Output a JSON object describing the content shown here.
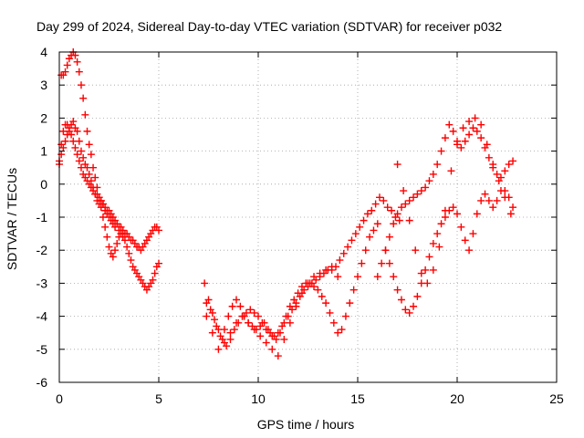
{
  "chart_data": {
    "type": "scatter",
    "title": "Day 299 of 2024, Sidereal Day-to-day VTEC variation (SDTVAR) for receiver p032",
    "xlabel": "GPS time / hours",
    "ylabel": "SDTVAR / TECUs",
    "xlim": [
      0,
      25
    ],
    "ylim": [
      -6,
      4
    ],
    "xticks": [
      0,
      5,
      10,
      15,
      20,
      25
    ],
    "yticks": [
      -6,
      -5,
      -4,
      -3,
      -2,
      -1,
      0,
      1,
      2,
      3,
      4
    ],
    "grid": true,
    "marker": "+",
    "series": [
      {
        "name": "p032",
        "color": "#ff0000",
        "x": [
          0.0,
          0.1,
          0.2,
          0.3,
          0.4,
          0.5,
          0.6,
          0.7,
          0.8,
          0.9,
          1.0,
          1.1,
          1.2,
          1.3,
          1.4,
          1.5,
          1.6,
          1.7,
          1.8,
          1.9,
          2.0,
          2.1,
          2.2,
          2.3,
          2.4,
          2.5,
          2.6,
          2.7,
          2.8,
          2.9,
          3.0,
          3.1,
          3.2,
          3.3,
          3.4,
          3.5,
          3.6,
          3.7,
          3.8,
          3.9,
          4.0,
          4.1,
          4.2,
          4.3,
          4.4,
          4.5,
          4.6,
          4.7,
          4.8,
          4.9,
          5.0,
          0.0,
          0.1,
          0.2,
          0.3,
          0.4,
          0.5,
          0.6,
          0.7,
          0.8,
          0.9,
          1.0,
          1.1,
          1.2,
          1.3,
          1.4,
          1.5,
          1.6,
          1.7,
          1.8,
          1.9,
          2.0,
          2.1,
          2.2,
          2.3,
          2.4,
          2.5,
          2.6,
          2.7,
          2.8,
          2.9,
          3.0,
          3.1,
          3.2,
          3.3,
          3.4,
          3.5,
          3.6,
          3.7,
          3.8,
          3.9,
          4.0,
          4.1,
          4.2,
          4.3,
          4.4,
          4.5,
          4.6,
          4.7,
          4.8,
          4.9,
          5.0,
          0.1,
          0.2,
          0.3,
          0.4,
          0.5,
          0.6,
          0.7,
          0.8,
          0.9,
          1.0,
          1.1,
          1.2,
          1.3,
          1.4,
          1.5,
          1.6,
          1.7,
          1.8,
          1.9,
          2.0,
          2.1,
          2.2,
          2.3,
          2.4,
          2.5,
          2.6,
          2.7,
          2.8,
          2.9,
          3.0,
          3.1,
          7.3,
          7.5,
          7.7,
          7.9,
          8.1,
          8.3,
          8.5,
          8.7,
          8.9,
          9.1,
          9.3,
          9.5,
          9.7,
          9.9,
          10.1,
          10.3,
          10.5,
          10.7,
          10.9,
          11.1,
          11.3,
          11.5,
          11.7,
          11.9,
          12.1,
          12.3,
          12.5,
          12.7,
          12.9,
          13.1,
          13.3,
          13.5,
          13.7,
          13.9,
          14.1,
          14.3,
          14.5,
          14.7,
          14.9,
          15.1,
          15.3,
          15.5,
          15.7,
          15.9,
          16.1,
          16.3,
          16.5,
          16.7,
          16.9,
          17.1,
          7.4,
          7.6,
          7.8,
          8.0,
          8.2,
          8.4,
          8.6,
          8.8,
          9.0,
          9.2,
          9.4,
          9.6,
          9.8,
          10.0,
          10.2,
          10.4,
          10.6,
          10.8,
          11.0,
          11.2,
          11.4,
          11.6,
          11.8,
          12.0,
          12.2,
          12.4,
          12.6,
          12.8,
          13.0,
          13.2,
          13.4,
          13.6,
          13.8,
          14.0,
          14.2,
          14.4,
          14.6,
          14.8,
          15.0,
          15.2,
          15.4,
          15.6,
          15.8,
          16.0,
          7.4,
          7.7,
          8.0,
          8.3,
          8.6,
          8.9,
          9.2,
          9.5,
          9.8,
          10.1,
          10.4,
          10.7,
          11.0,
          11.3,
          11.6,
          11.9,
          12.2,
          12.5,
          12.8,
          13.1,
          13.4,
          13.7,
          14.0,
          16.0,
          16.2,
          16.4,
          16.6,
          16.8,
          17.0,
          17.2,
          17.4,
          17.6,
          17.8,
          18.0,
          18.2,
          18.4,
          18.6,
          18.8,
          19.0,
          19.2,
          19.4,
          19.6,
          19.8,
          20.0,
          20.2,
          20.4,
          20.6,
          20.8,
          21.0,
          21.2,
          21.4,
          21.6,
          21.8,
          22.0,
          22.2,
          22.4,
          22.6,
          22.8,
          16.4,
          16.6,
          16.8,
          17.0,
          17.2,
          17.4,
          17.6,
          17.8,
          18.0,
          18.2,
          18.4,
          18.6,
          18.8,
          19.0,
          19.2,
          19.4,
          19.6,
          19.8,
          20.0,
          20.2,
          20.4,
          20.6,
          20.8,
          21.0,
          21.2,
          21.4,
          21.6,
          21.8,
          22.0,
          22.2,
          22.4,
          22.6,
          22.8,
          17.0,
          17.3,
          17.6,
          17.9,
          18.2,
          18.5,
          18.8,
          19.1,
          19.4,
          19.7,
          20.0,
          20.3,
          20.6,
          20.9,
          21.2,
          21.5,
          21.8,
          22.1,
          22.4,
          22.7
        ],
        "y": [
          0.6,
          1.2,
          1.6,
          1.8,
          1.8,
          1.7,
          1.8,
          1.9,
          1.7,
          1.6,
          1.3,
          1.0,
          0.8,
          0.6,
          0.5,
          0.3,
          0.1,
          -0.1,
          -0.3,
          -0.5,
          -0.6,
          -0.5,
          -0.6,
          -0.8,
          -0.9,
          -1.0,
          -1.1,
          -1.2,
          -1.3,
          -1.2,
          -1.4,
          -1.5,
          -1.6,
          -1.7,
          -1.9,
          -2.1,
          -2.3,
          -2.5,
          -2.6,
          -2.7,
          -2.8,
          -2.9,
          -3.0,
          -3.1,
          -3.2,
          -3.1,
          -3.0,
          -2.9,
          -2.7,
          -2.5,
          -2.4,
          0.7,
          0.9,
          1.1,
          1.3,
          1.5,
          1.6,
          1.5,
          1.3,
          1.1,
          0.9,
          0.7,
          0.5,
          0.3,
          0.2,
          0.1,
          0.0,
          -0.1,
          -0.2,
          -0.3,
          -0.3,
          -0.4,
          -0.5,
          -0.6,
          -0.7,
          -0.8,
          -0.8,
          -0.9,
          -1.0,
          -1.1,
          -1.2,
          -1.3,
          -1.3,
          -1.4,
          -1.5,
          -1.5,
          -1.6,
          -1.7,
          -1.7,
          -1.8,
          -1.9,
          -1.9,
          -2.0,
          -1.9,
          -1.8,
          -1.7,
          -1.6,
          -1.5,
          -1.4,
          -1.3,
          -1.3,
          -1.4,
          3.3,
          3.3,
          3.4,
          3.6,
          3.8,
          3.9,
          4.0,
          3.9,
          3.7,
          3.4,
          3.0,
          2.6,
          2.1,
          1.6,
          1.2,
          0.9,
          0.5,
          0.2,
          -0.1,
          -0.4,
          -0.7,
          -1.0,
          -1.3,
          -1.6,
          -1.9,
          -2.1,
          -2.2,
          -2.0,
          -1.8,
          -1.6,
          -1.5,
          -3.0,
          -3.5,
          -3.9,
          -4.3,
          -4.6,
          -4.4,
          -4.0,
          -3.7,
          -3.5,
          -3.7,
          -4.0,
          -4.2,
          -4.3,
          -4.4,
          -4.3,
          -4.2,
          -4.4,
          -4.6,
          -4.7,
          -4.5,
          -4.2,
          -4.0,
          -3.8,
          -3.6,
          -3.4,
          -3.2,
          -3.1,
          -3.0,
          -2.9,
          -2.8,
          -2.7,
          -2.6,
          -2.5,
          -2.5,
          -2.3,
          -2.1,
          -1.9,
          -1.7,
          -1.5,
          -1.3,
          -1.1,
          -0.9,
          -0.8,
          -0.6,
          -0.4,
          -0.5,
          -0.7,
          -0.8,
          -1.0,
          -1.1,
          -3.6,
          -3.8,
          -4.1,
          -4.4,
          -4.7,
          -4.9,
          -4.7,
          -4.4,
          -4.2,
          -4.0,
          -3.9,
          -3.8,
          -3.9,
          -4.0,
          -4.2,
          -4.4,
          -4.5,
          -4.6,
          -4.5,
          -4.3,
          -4.0,
          -3.7,
          -3.5,
          -3.3,
          -3.1,
          -3.0,
          -3.0,
          -3.1,
          -3.2,
          -3.4,
          -3.6,
          -3.9,
          -4.2,
          -4.5,
          -4.4,
          -4.0,
          -3.6,
          -3.2,
          -2.8,
          -2.4,
          -2.0,
          -1.6,
          -1.4,
          -1.2,
          -4.0,
          -4.5,
          -5.0,
          -4.8,
          -4.5,
          -4.2,
          -4.0,
          -4.2,
          -4.4,
          -4.6,
          -4.8,
          -5.0,
          -5.2,
          -4.7,
          -4.2,
          -3.7,
          -3.3,
          -3.0,
          -2.8,
          -2.7,
          -2.6,
          -2.6,
          -2.8,
          -2.8,
          -2.4,
          -2.0,
          -1.6,
          -1.2,
          -0.9,
          -0.7,
          -0.6,
          -0.5,
          -0.4,
          -0.3,
          -0.2,
          -0.1,
          0.1,
          0.3,
          0.6,
          1.0,
          1.4,
          1.8,
          1.6,
          1.3,
          1.1,
          1.3,
          1.5,
          1.7,
          1.6,
          1.4,
          1.1,
          0.8,
          0.5,
          0.3,
          0.2,
          0.4,
          0.6,
          0.7,
          -2.0,
          -2.4,
          -2.8,
          -3.2,
          -3.5,
          -3.8,
          -3.9,
          -3.7,
          -3.4,
          -3.0,
          -2.6,
          -2.2,
          -1.8,
          -1.5,
          -1.2,
          -1.0,
          -0.8,
          -0.7,
          -0.9,
          -1.3,
          -1.7,
          -2.0,
          -1.5,
          -0.9,
          -0.5,
          -0.3,
          -0.5,
          -0.7,
          -0.5,
          -0.2,
          -0.2,
          -0.4,
          -0.7,
          0.6,
          -0.2,
          -1.1,
          -2.0,
          -2.7,
          -3.0,
          -2.6,
          -1.9,
          -0.8,
          0.4,
          1.2,
          1.7,
          1.9,
          2.0,
          1.8,
          1.2,
          0.6,
          0.1,
          -0.4,
          -0.9
        ]
      }
    ]
  }
}
